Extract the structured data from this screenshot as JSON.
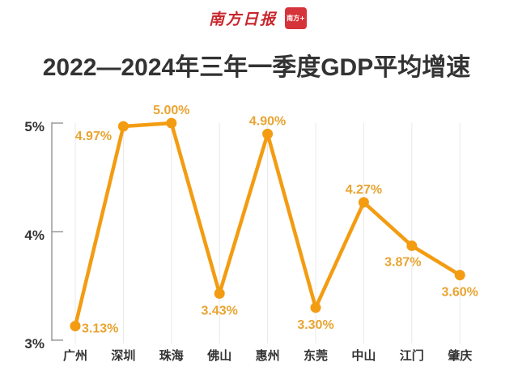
{
  "header": {
    "logo_text": "南方日报",
    "logo_badge": "南方+",
    "brand_color": "#D5343A"
  },
  "chart_data": {
    "type": "line",
    "title": "2022—2024年三年一季度GDP平均增速",
    "xlabel": "",
    "ylabel": "",
    "categories": [
      "广州",
      "深圳",
      "珠海",
      "佛山",
      "惠州",
      "东莞",
      "中山",
      "江门",
      "肇庆"
    ],
    "values": [
      3.13,
      4.97,
      5.0,
      3.43,
      4.9,
      3.3,
      4.27,
      3.87,
      3.6
    ],
    "value_labels": [
      "3.13%",
      "4.97%",
      "5.00%",
      "3.43%",
      "4.90%",
      "3.30%",
      "4.27%",
      "3.87%",
      "3.60%"
    ],
    "label_positions": [
      "right",
      "left",
      "above",
      "below",
      "above",
      "below",
      "above",
      "below-left",
      "below"
    ],
    "ylim": [
      3,
      5
    ],
    "yticks": [
      5,
      4,
      3
    ],
    "ytick_labels": [
      "5%",
      "4%",
      "3%"
    ],
    "grid": "vertical",
    "legend": "none",
    "line_color": "#F39C12",
    "label_color": "#E9A431",
    "grid_color": "#E8E8E8",
    "axis_color": "#9A9A9A"
  }
}
